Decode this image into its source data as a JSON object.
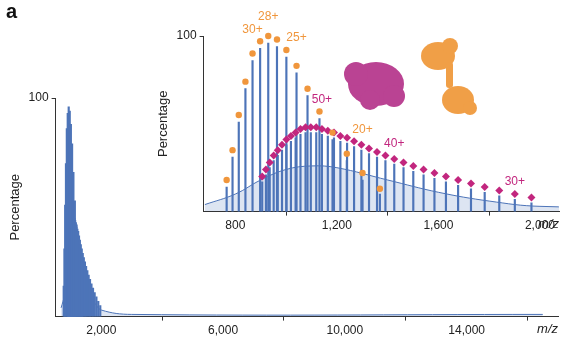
{
  "panel": "a",
  "chart_data": [
    {
      "type": "scatter",
      "x_label": "m/z",
      "y_label": "Percentage",
      "xlim": [
        500,
        17000
      ],
      "xticks": [
        {
          "value": 2000,
          "label": "2,000"
        },
        {
          "value": 6000,
          "label": "6,000"
        },
        {
          "value": 10000,
          "label": "10,000"
        },
        {
          "value": 14000,
          "label": "14,000"
        }
      ],
      "ylim": [
        0,
        100
      ],
      "yticks": [
        100
      ],
      "series": [
        {
          "type": "bar",
          "color": "#4d74b8",
          "x": [
            765.7,
            788.9,
            813.5,
            839.7,
            867.7,
            897.6,
            929.6,
            964.0,
            1001.0,
            1041.0,
            1084.3,
            1131.4,
            1182.8,
            1239.1,
            1301.0,
            1369.4,
            905.8,
            920.4,
            935.4,
            951.0,
            967.1,
            983.8,
            1001.0,
            1018.9,
            1037.4,
            1056.6,
            1076.5,
            1097.2,
            1118.7,
            1141.0,
            1164.3,
            1188.5,
            1213.8,
            1240.1,
            1267.7,
            1296.5,
            1326.6,
            1358.1,
            1391.2,
            1426.0,
            1462.5,
            1501.0,
            1541.5,
            1584.3,
            1629.6,
            1677.5,
            1728.3,
            1782.3,
            1839.7,
            1901.0,
            1966.5
          ],
          "values": [
            14,
            31,
            51,
            70,
            86,
            93,
            96,
            94,
            88,
            79,
            66,
            53,
            41,
            29,
            18,
            10,
            17,
            21,
            25,
            29,
            32,
            35,
            38,
            40,
            42,
            44,
            45,
            45,
            45,
            44,
            43,
            42,
            40,
            39,
            37,
            35,
            33,
            31,
            29,
            27,
            25,
            23,
            21,
            19,
            17,
            15,
            13,
            11,
            9,
            7,
            5
          ]
        },
        {
          "type": "area",
          "color": "#4d74b8",
          "x": [
            680,
            800,
            900,
            1000,
            1100,
            1200,
            1400,
            1600,
            1800,
            2000,
            3000,
            16500
          ],
          "values": [
            4,
            10,
            18,
            24,
            26,
            25,
            18,
            11,
            6,
            3,
            1,
            1
          ]
        }
      ]
    },
    {
      "type": "scatter",
      "x_label": "m/z",
      "y_label": "Percentage",
      "xlim": [
        675,
        2075
      ],
      "xticks": [
        800,
        {
          "value": 1200,
          "label": "1,200"
        },
        {
          "value": 1600,
          "label": "1,600"
        },
        {
          "value": 2000,
          "label": "2,000"
        }
      ],
      "ylim": [
        0,
        100
      ],
      "yticks": [
        100
      ],
      "series": [
        {
          "type": "bar",
          "color": "#4d74b8",
          "x": [
            765.7,
            788.9,
            813.5,
            839.7,
            867.7,
            897.6,
            929.6,
            964.0,
            1001.0,
            1041.0,
            1084.3,
            1131.4,
            1182.8,
            1239.1,
            1301.0,
            1369.4,
            905.8,
            920.4,
            935.4,
            951.0,
            967.1,
            983.8,
            1001.0,
            1018.9,
            1037.4,
            1056.6,
            1076.5,
            1097.2,
            1118.7,
            1141.0,
            1164.3,
            1188.5,
            1213.8,
            1240.1,
            1267.7,
            1296.5,
            1326.6,
            1358.1,
            1391.2,
            1426.0,
            1462.5,
            1501.0,
            1541.5,
            1584.3,
            1629.6,
            1677.5,
            1728.3,
            1782.3,
            1839.7,
            1901.0,
            1966.5
          ],
          "values": [
            14,
            31,
            51,
            70,
            86,
            93,
            96,
            94,
            88,
            79,
            66,
            53,
            41,
            29,
            18,
            10,
            17,
            21,
            25,
            29,
            32,
            35,
            38,
            40,
            42,
            44,
            45,
            45,
            45,
            44,
            43,
            42,
            40,
            39,
            37,
            35,
            33,
            31,
            29,
            27,
            25,
            23,
            21,
            19,
            17,
            15,
            13,
            11,
            9,
            7,
            5
          ]
        },
        {
          "type": "area",
          "color": "#4d74b8",
          "x": [
            680,
            800,
            900,
            1000,
            1100,
            1200,
            1400,
            1600,
            1800,
            2000,
            3000,
            16500
          ],
          "values": [
            4,
            10,
            18,
            24,
            26,
            25,
            18,
            11,
            6,
            3,
            1,
            1
          ]
        },
        {
          "type": "scatter",
          "marker": "circle",
          "color": "#f0963c",
          "x": [
            765.7,
            788.9,
            813.5,
            839.7,
            867.7,
            897.6,
            929.6,
            964.0,
            1001.0,
            1041.0,
            1084.3,
            1131.4,
            1182.8,
            1239.1,
            1301.0,
            1369.4
          ],
          "values": [
            18,
            35,
            55,
            74,
            90,
            97,
            100,
            98,
            92,
            83,
            70,
            57,
            45,
            33,
            22,
            13
          ],
          "point_labels": [
            null,
            null,
            null,
            null,
            "30+",
            null,
            "28+",
            null,
            null,
            "25+",
            null,
            null,
            null,
            null,
            "20+",
            null
          ]
        },
        {
          "type": "scatter",
          "marker": "diamond",
          "color": "#c2267e",
          "x": [
            905.8,
            920.4,
            935.4,
            951.0,
            967.1,
            983.8,
            1001.0,
            1018.9,
            1037.4,
            1056.6,
            1076.5,
            1097.2,
            1118.7,
            1141.0,
            1164.3,
            1188.5,
            1213.8,
            1240.1,
            1267.7,
            1296.5,
            1326.6,
            1358.1,
            1391.2,
            1426.0,
            1462.5,
            1501.0,
            1541.5,
            1584.3,
            1629.6,
            1677.5,
            1728.3,
            1782.3,
            1839.7,
            1901.0,
            1966.5
          ],
          "values": [
            20,
            24,
            28,
            32,
            35,
            38,
            41,
            43,
            45,
            47,
            48,
            48,
            48,
            47,
            46,
            45,
            43,
            42,
            40,
            38,
            36,
            34,
            32,
            30,
            28,
            26,
            24,
            22,
            20,
            18,
            16,
            14,
            12,
            10,
            8
          ],
          "point_labels": [
            null,
            null,
            null,
            null,
            null,
            null,
            null,
            null,
            null,
            null,
            null,
            null,
            null,
            "50+",
            null,
            null,
            null,
            null,
            null,
            null,
            null,
            null,
            null,
            "40+",
            null,
            null,
            null,
            null,
            null,
            null,
            null,
            null,
            null,
            "30+",
            null
          ]
        }
      ]
    }
  ]
}
